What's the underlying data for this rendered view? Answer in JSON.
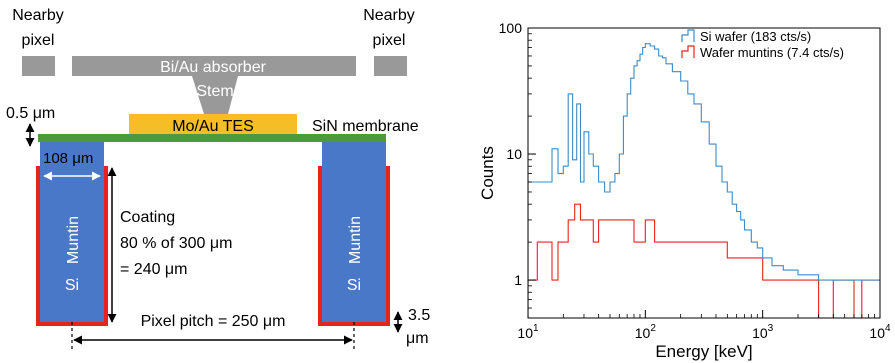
{
  "diagram": {
    "nearby_left_l1": "Nearby",
    "nearby_left_l2": "pixel",
    "nearby_right_l1": "Nearby",
    "nearby_right_l2": "pixel",
    "absorber": "Bi/Au absorber",
    "stem": "Stem",
    "tes": "Mo/Au TES",
    "membrane": "SiN membrane",
    "membrane_thickness": "0.5 μm",
    "muntin_width": "108 μm",
    "coating_l1": "Coating",
    "coating_l2": "80 % of 300 μm",
    "coating_l3": "= 240 μm",
    "muntin_left": "Muntin",
    "si_left": "Si",
    "muntin_right": "Muntin",
    "si_right": "Si",
    "pitch": "Pixel pitch = 250 μm",
    "thickness_l1": "3.5",
    "thickness_l2": "μm",
    "colors": {
      "gray": "#999999",
      "tes": "#f5bd26",
      "membrane": "#4e9a3a",
      "muntin": "#4a78c8",
      "coating": "#e8221e"
    }
  },
  "chart_data": {
    "type": "line",
    "xlabel": "Energy [keV]",
    "ylabel": "Counts",
    "xscale": "log",
    "yscale": "log",
    "xlim": [
      10,
      10000
    ],
    "ylim": [
      0.5,
      100
    ],
    "xticks": [
      10,
      100,
      1000,
      10000
    ],
    "xtick_labels": [
      "10",
      "10",
      "10",
      "10"
    ],
    "xtick_exponents": [
      "1",
      "2",
      "3",
      "4"
    ],
    "yticks": [
      1,
      10,
      100
    ],
    "ytick_labels": [
      "1",
      "10",
      "100"
    ],
    "legend_position": "top-right",
    "grid": false,
    "series": [
      {
        "name": "Si wafer (183 cts/s)",
        "color": "#3b8bc8",
        "x": [
          10,
          12,
          14,
          16,
          18,
          20,
          22,
          24,
          26,
          28,
          30,
          33,
          36,
          40,
          45,
          50,
          55,
          60,
          65,
          70,
          75,
          80,
          85,
          90,
          95,
          100,
          110,
          120,
          130,
          140,
          150,
          170,
          200,
          230,
          260,
          300,
          350,
          400,
          450,
          500,
          550,
          600,
          650,
          700,
          800,
          900,
          1000,
          1200,
          1500,
          2000,
          3000,
          4000,
          5000,
          7000,
          10000
        ],
        "y": [
          6,
          6,
          6,
          11,
          7,
          8,
          30,
          9,
          25,
          6,
          15,
          10,
          8,
          6,
          5,
          6,
          7,
          10,
          20,
          30,
          40,
          50,
          55,
          62,
          70,
          75,
          72,
          68,
          60,
          58,
          52,
          45,
          38,
          30,
          25,
          18,
          12,
          8,
          6,
          5,
          4,
          3.5,
          3,
          2.5,
          2,
          1.8,
          1.5,
          1.3,
          1.2,
          1.1,
          1,
          1,
          1,
          1,
          1
        ]
      },
      {
        "name": "Wafer muntins (7.4 cts/s)",
        "color": "#e8221e",
        "x": [
          10,
          12,
          14,
          16,
          18,
          20,
          22,
          25,
          28,
          32,
          36,
          40,
          45,
          50,
          60,
          70,
          80,
          100,
          120,
          150,
          200,
          250,
          300,
          400,
          500,
          600,
          700,
          800,
          1000,
          1200,
          1500,
          2000,
          2500,
          3000,
          4000,
          5000,
          6000,
          7000,
          8000,
          10000
        ],
        "y": [
          1,
          2,
          2,
          1,
          2,
          2,
          3,
          4,
          3,
          3,
          2,
          3,
          3,
          3,
          3,
          3,
          2,
          3,
          2,
          2,
          2,
          2,
          2,
          2,
          1.5,
          1.5,
          1.5,
          1.5,
          1,
          1,
          1,
          1,
          1,
          0.5,
          1,
          1,
          0.5,
          1,
          1,
          1
        ]
      }
    ]
  }
}
